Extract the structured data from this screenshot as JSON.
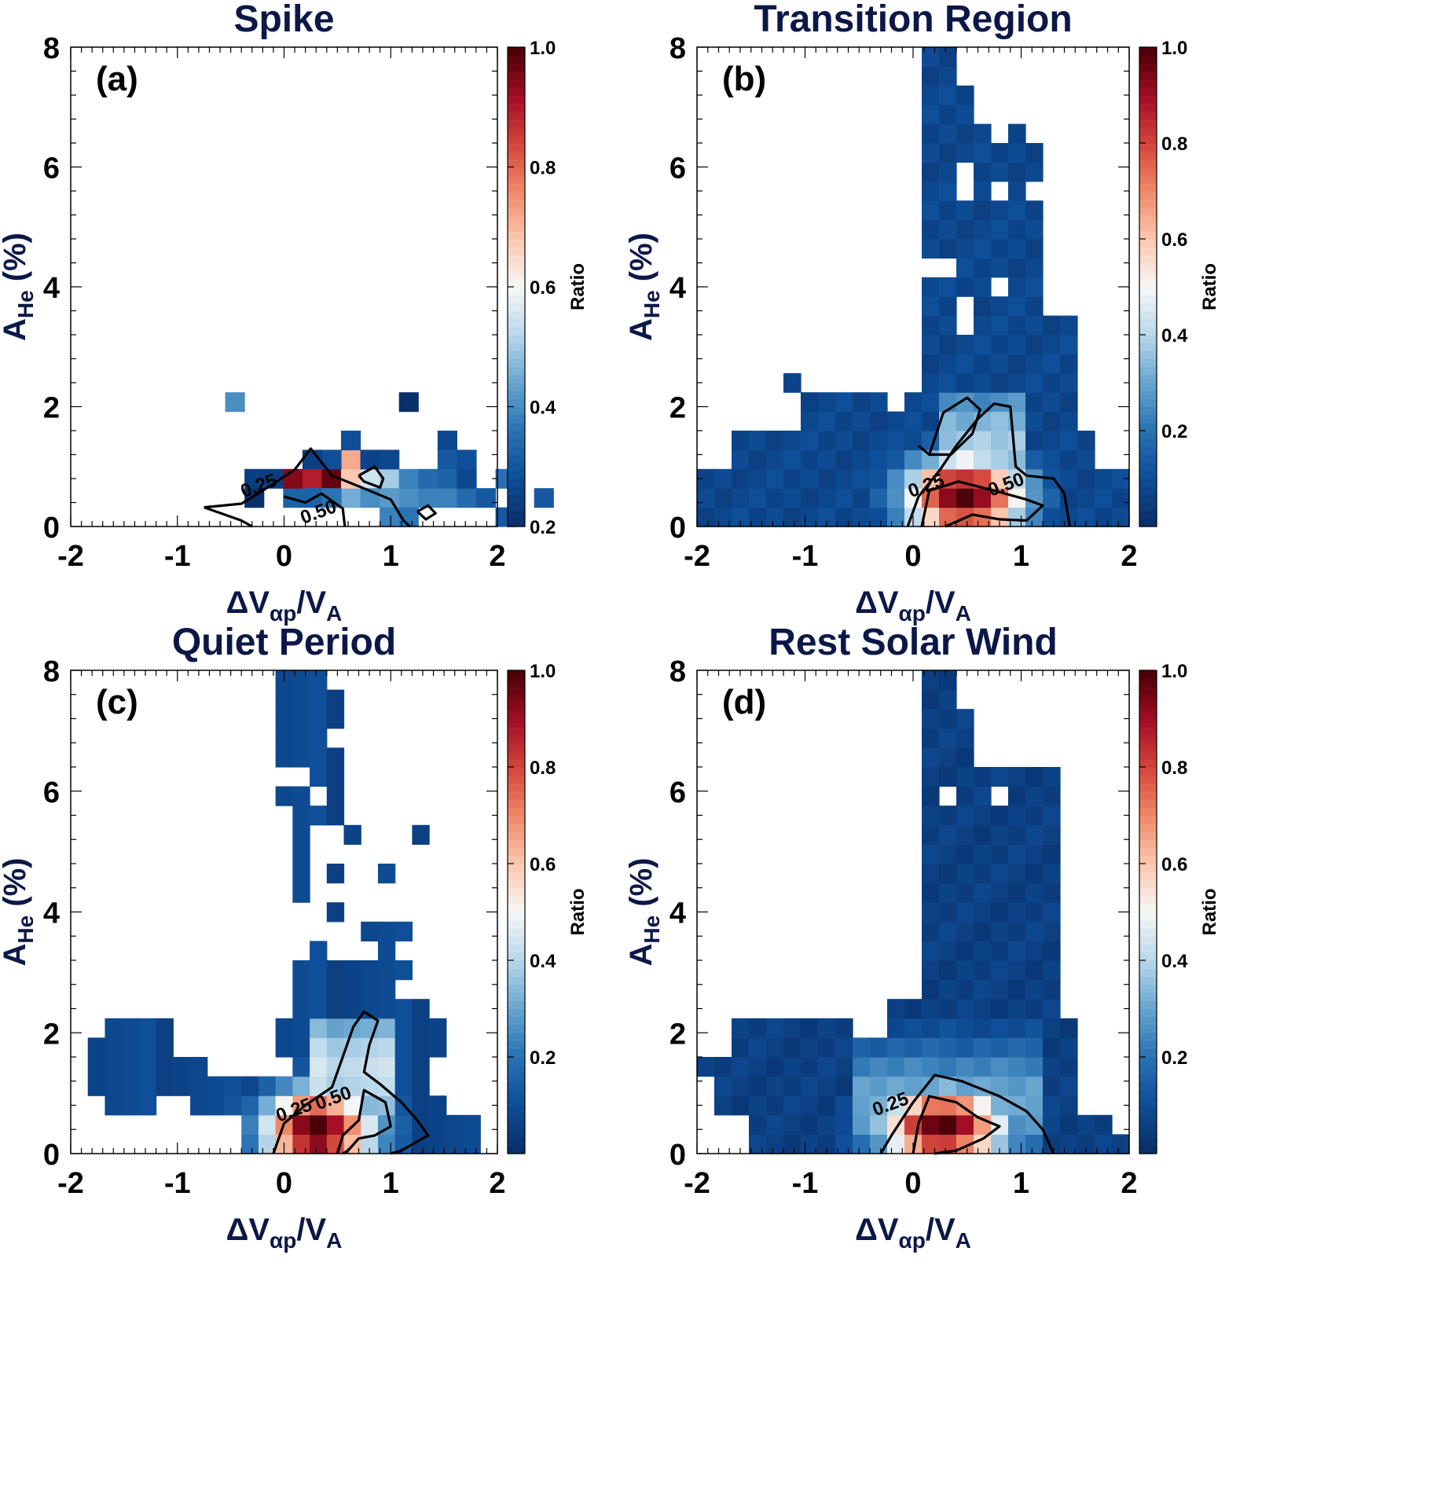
{
  "colors": {
    "title": "#0b1847",
    "colormap": [
      "#08306b",
      "#0f4f9a",
      "#2b74b4",
      "#6aa7d0",
      "#b9d8ea",
      "#f7f7f7",
      "#fbc8b0",
      "#f08a6a",
      "#d3483c",
      "#a50f26",
      "#4d0008"
    ]
  },
  "chart_data": [
    {
      "type": "heatmap",
      "title": "Spike",
      "panel_label": "(a)",
      "xlabel": "ΔV",
      "xlabel_sub": "αp",
      "xlabel_tail": "/V",
      "xlabel_tail_sub": "A",
      "ylabel": "A",
      "ylabel_sub": "He",
      "ylabel_tail": " (%)",
      "xlim": [
        -2,
        2
      ],
      "ylim": [
        0,
        8
      ],
      "xticks": [
        "-2",
        "-1",
        "0",
        "1",
        "2"
      ],
      "yticks": [
        "0",
        "2",
        "4",
        "6",
        "8"
      ],
      "colorbar_label": "Ratio",
      "colorbar_range": [
        0.2,
        1.0
      ],
      "colorbar_ticks": [
        "0.2",
        "0.4",
        "0.6",
        "0.8",
        "1.0"
      ],
      "contour_labels": [
        {
          "text": "0.25",
          "x": -0.38,
          "y": 0.48
        },
        {
          "text": "0.50",
          "x": 0.18,
          "y": 0.04
        }
      ],
      "x_start": -2,
      "y_start": 0,
      "cell_dx": 0.181,
      "cell_dy": 0.32,
      "cells": [
        [
          8,
          6,
          0.4
        ],
        [
          9,
          1,
          0.2
        ],
        [
          9,
          2,
          0.24
        ],
        [
          10,
          2,
          0.24
        ],
        [
          11,
          1,
          0.32
        ],
        [
          11,
          2,
          0.95
        ],
        [
          12,
          2,
          0.9
        ],
        [
          13,
          2,
          0.98
        ],
        [
          14,
          1,
          0.45
        ],
        [
          14,
          2,
          0.68
        ],
        [
          14,
          3,
          0.72
        ],
        [
          15,
          2,
          0.55
        ],
        [
          16,
          2,
          0.5
        ],
        [
          17,
          1,
          0.4
        ],
        [
          17,
          2,
          0.38
        ],
        [
          18,
          1,
          0.38
        ],
        [
          18,
          2,
          0.34
        ],
        [
          19,
          1,
          0.38
        ],
        [
          19,
          2,
          0.32
        ],
        [
          20,
          1,
          0.34
        ],
        [
          20,
          2,
          0.26
        ],
        [
          21,
          1,
          0.3
        ],
        [
          22,
          2,
          0.35
        ],
        [
          22,
          0,
          0.3
        ],
        [
          24,
          1,
          0.3
        ],
        [
          13,
          3,
          0.28
        ],
        [
          14,
          4,
          0.28
        ],
        [
          15,
          3,
          0.25
        ],
        [
          16,
          3,
          0.26
        ],
        [
          12,
          3,
          0.24
        ],
        [
          17,
          6,
          0.2
        ],
        [
          19,
          4,
          0.26
        ],
        [
          19,
          3,
          0.3
        ],
        [
          20,
          3,
          0.28
        ],
        [
          12,
          1,
          0.32
        ],
        [
          13,
          1,
          0.36
        ],
        [
          15,
          1,
          0.4
        ],
        [
          16,
          1,
          0.42
        ],
        [
          16,
          0,
          0.38
        ],
        [
          17,
          0,
          0.36
        ]
      ],
      "contours": [
        [
          [
            -0.75,
            0.32
          ],
          [
            -0.4,
            0.38
          ],
          [
            -0.2,
            0.6
          ],
          [
            0.1,
            0.95
          ],
          [
            0.25,
            1.3
          ],
          [
            0.45,
            0.85
          ],
          [
            0.8,
            0.6
          ],
          [
            1.0,
            0.45
          ],
          [
            1.12,
            0.1
          ],
          [
            1.18,
            0.0
          ]
        ],
        [
          [
            -0.75,
            0.32
          ],
          [
            -0.4,
            0.1
          ],
          [
            -0.3,
            0.0
          ]
        ],
        [
          [
            0.0,
            0.5
          ],
          [
            0.2,
            0.4
          ],
          [
            0.35,
            0.55
          ],
          [
            0.55,
            0.3
          ],
          [
            0.57,
            0.0
          ]
        ],
        [
          [
            0.7,
            0.85
          ],
          [
            0.85,
            1.0
          ],
          [
            0.93,
            0.8
          ],
          [
            0.9,
            0.65
          ],
          [
            0.75,
            0.75
          ],
          [
            0.7,
            0.85
          ]
        ],
        [
          [
            1.25,
            0.25
          ],
          [
            1.35,
            0.35
          ],
          [
            1.42,
            0.22
          ],
          [
            1.33,
            0.12
          ],
          [
            1.25,
            0.25
          ]
        ]
      ]
    },
    {
      "type": "heatmap",
      "title": "Transition Region",
      "panel_label": "(b)",
      "xlabel": "ΔV",
      "xlabel_sub": "αp",
      "xlabel_tail": "/V",
      "xlabel_tail_sub": "A",
      "ylabel": "A",
      "ylabel_sub": "He",
      "ylabel_tail": " (%)",
      "xlim": [
        -2,
        2
      ],
      "ylim": [
        0,
        8
      ],
      "xticks": [
        "-2",
        "-1",
        "0",
        "1",
        "2"
      ],
      "yticks": [
        "0",
        "2",
        "4",
        "6",
        "8"
      ],
      "colorbar_label": "Ratio",
      "colorbar_range": [
        0.0,
        1.0
      ],
      "colorbar_ticks": [
        "0.2",
        "0.4",
        "0.6",
        "0.8",
        "1.0"
      ],
      "contour_labels": [
        {
          "text": "0.25",
          "x": -0.02,
          "y": 0.48
        },
        {
          "text": "0.50",
          "x": 0.72,
          "y": 0.5
        }
      ],
      "x_start": -2,
      "y_start": 0,
      "cell_dx": 0.16,
      "cell_dy": 0.32,
      "cells": "region_b",
      "contours": [
        [
          [
            -0.05,
            0.0
          ],
          [
            0.05,
            0.5
          ],
          [
            0.25,
            0.95
          ],
          [
            0.4,
            1.35
          ],
          [
            0.6,
            1.8
          ],
          [
            0.75,
            2.05
          ],
          [
            0.9,
            2.0
          ],
          [
            0.92,
            1.6
          ],
          [
            0.95,
            1.0
          ],
          [
            1.05,
            0.85
          ],
          [
            1.3,
            0.8
          ],
          [
            1.4,
            0.55
          ],
          [
            1.45,
            0.0
          ]
        ],
        [
          [
            0.05,
            1.35
          ],
          [
            0.15,
            1.2
          ],
          [
            0.28,
            1.9
          ],
          [
            0.5,
            2.15
          ],
          [
            0.62,
            1.95
          ],
          [
            0.55,
            1.55
          ],
          [
            0.35,
            1.2
          ],
          [
            0.15,
            1.2
          ]
        ],
        [
          [
            0.08,
            0.0
          ],
          [
            0.15,
            0.6
          ],
          [
            0.42,
            0.75
          ],
          [
            0.75,
            0.6
          ],
          [
            1.05,
            0.45
          ],
          [
            1.2,
            0.35
          ],
          [
            1.05,
            0.1
          ],
          [
            0.8,
            0.12
          ],
          [
            0.55,
            0.2
          ],
          [
            0.3,
            0.0
          ]
        ]
      ]
    },
    {
      "type": "heatmap",
      "title": "Quiet Period",
      "panel_label": "(c)",
      "xlabel": "ΔV",
      "xlabel_sub": "αp",
      "xlabel_tail": "/V",
      "xlabel_tail_sub": "A",
      "ylabel": "A",
      "ylabel_sub": "He",
      "ylabel_tail": " (%)",
      "xlim": [
        -2,
        2
      ],
      "ylim": [
        0,
        8
      ],
      "xticks": [
        "-2",
        "-1",
        "0",
        "1",
        "2"
      ],
      "yticks": [
        "0",
        "2",
        "4",
        "6",
        "8"
      ],
      "colorbar_label": "Ratio",
      "colorbar_range": [
        0.0,
        1.0
      ],
      "colorbar_ticks": [
        "0.2",
        "0.4",
        "0.6",
        "0.8",
        "1.0"
      ],
      "contour_labels": [
        {
          "text": "0.25",
          "x": -0.05,
          "y": 0.52
        },
        {
          "text": "0.50",
          "x": 0.32,
          "y": 0.72
        }
      ],
      "x_start": -2,
      "y_start": 0,
      "cell_dx": 0.16,
      "cell_dy": 0.32,
      "cells": "region_c",
      "contours": [
        [
          [
            -0.1,
            0.0
          ],
          [
            0.0,
            0.5
          ],
          [
            0.2,
            0.8
          ],
          [
            0.45,
            1.1
          ],
          [
            0.55,
            1.6
          ],
          [
            0.65,
            2.1
          ],
          [
            0.75,
            2.35
          ],
          [
            0.88,
            2.2
          ],
          [
            0.8,
            1.8
          ],
          [
            0.75,
            1.35
          ],
          [
            0.9,
            1.15
          ],
          [
            1.1,
            0.85
          ],
          [
            1.25,
            0.55
          ],
          [
            1.35,
            0.3
          ],
          [
            1.1,
            0.05
          ],
          [
            1.0,
            0.0
          ]
        ],
        [
          [
            0.5,
            0.0
          ],
          [
            0.55,
            0.3
          ],
          [
            0.7,
            0.55
          ],
          [
            0.75,
            1.05
          ],
          [
            0.95,
            0.85
          ],
          [
            1.0,
            0.45
          ],
          [
            0.85,
            0.3
          ],
          [
            0.7,
            0.25
          ],
          [
            0.6,
            0.05
          ],
          [
            0.55,
            0.0
          ]
        ]
      ]
    },
    {
      "type": "heatmap",
      "title": "Rest Solar Wind",
      "panel_label": "(d)",
      "xlabel": "ΔV",
      "xlabel_sub": "αp",
      "xlabel_tail": "/V",
      "xlabel_tail_sub": "A",
      "ylabel": "A",
      "ylabel_sub": "He",
      "ylabel_tail": " (%)",
      "xlim": [
        -2,
        2
      ],
      "ylim": [
        0,
        8
      ],
      "xticks": [
        "-2",
        "-1",
        "0",
        "1",
        "2"
      ],
      "yticks": [
        "0",
        "2",
        "4",
        "6",
        "8"
      ],
      "colorbar_label": "Ratio",
      "colorbar_range": [
        0.0,
        1.0
      ],
      "colorbar_ticks": [
        "0.2",
        "0.4",
        "0.6",
        "0.8",
        "1.0"
      ],
      "contour_labels": [
        {
          "text": "0.25",
          "x": -0.35,
          "y": 0.62
        }
      ],
      "x_start": -2,
      "y_start": 0,
      "cell_dx": 0.16,
      "cell_dy": 0.32,
      "cells": "region_d",
      "contours": [
        [
          [
            -0.3,
            0.0
          ],
          [
            -0.2,
            0.3
          ],
          [
            0.0,
            0.85
          ],
          [
            0.2,
            1.3
          ],
          [
            0.45,
            1.2
          ],
          [
            0.8,
            0.95
          ],
          [
            1.05,
            0.7
          ],
          [
            1.2,
            0.4
          ],
          [
            1.3,
            0.0
          ]
        ],
        [
          [
            0.0,
            0.0
          ],
          [
            0.05,
            0.5
          ],
          [
            0.15,
            0.95
          ],
          [
            0.4,
            0.85
          ],
          [
            0.6,
            0.6
          ],
          [
            0.8,
            0.45
          ],
          [
            0.65,
            0.25
          ],
          [
            0.4,
            0.05
          ],
          [
            0.2,
            0.0
          ]
        ]
      ]
    }
  ]
}
